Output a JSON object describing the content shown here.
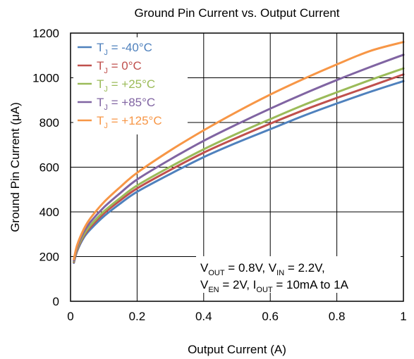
{
  "chart_data": {
    "type": "line",
    "title": "Ground Pin Current vs. Output Current",
    "xlabel": "Output Current (A)",
    "ylabel": "Ground Pin Current (μA)",
    "xlim": [
      0,
      1
    ],
    "ylim": [
      0,
      1200
    ],
    "xticks": [
      0,
      0.2,
      0.4,
      0.6,
      0.8,
      1
    ],
    "xtick_labels": [
      "0",
      "0.2",
      "0.4",
      "0.6",
      "0.8",
      "1"
    ],
    "yticks": [
      0,
      200,
      400,
      600,
      800,
      1000,
      1200
    ],
    "ytick_labels": [
      "0",
      "200",
      "400",
      "600",
      "800",
      "1000",
      "1200"
    ],
    "grid": true,
    "legend_position": "top-left",
    "x": [
      0.01,
      0.02,
      0.04,
      0.06,
      0.1,
      0.15,
      0.2,
      0.3,
      0.4,
      0.5,
      0.6,
      0.7,
      0.8,
      0.9,
      1.0
    ],
    "series": [
      {
        "name_main": "T",
        "name_sub": "J",
        "name_rest": " = -40°C",
        "color": "#4f81bd",
        "values": [
          172,
          225,
          285,
          322,
          380,
          438,
          490,
          570,
          645,
          710,
          770,
          830,
          885,
          937,
          985
        ]
      },
      {
        "name_main": "T",
        "name_sub": "J",
        "name_rest": " = 0°C",
        "color": "#c0504d",
        "values": [
          175,
          230,
          292,
          332,
          393,
          452,
          505,
          588,
          665,
          732,
          795,
          855,
          910,
          962,
          1015
        ]
      },
      {
        "name_main": "T",
        "name_sub": "J",
        "name_rest": " = +25°C",
        "color": "#9bbb59",
        "values": [
          178,
          235,
          298,
          340,
          402,
          463,
          518,
          602,
          680,
          750,
          815,
          878,
          935,
          990,
          1042
        ]
      },
      {
        "name_main": "T",
        "name_sub": "J",
        "name_rest": " = +85°C",
        "color": "#8064a2",
        "values": [
          182,
          243,
          310,
          355,
          420,
          485,
          545,
          635,
          718,
          792,
          862,
          928,
          990,
          1048,
          1103
        ]
      },
      {
        "name_main": "T",
        "name_sub": "J",
        "name_rest": " = +125°C",
        "color": "#f79646",
        "values": [
          188,
          252,
          323,
          372,
          443,
          512,
          575,
          675,
          765,
          848,
          925,
          995,
          1060,
          1120,
          1160
        ]
      }
    ],
    "annotation": [
      [
        {
          "t": "V"
        },
        {
          "t": "OUT",
          "sub": true
        },
        {
          "t": " = 0.8V, V"
        },
        {
          "t": "IN",
          "sub": true
        },
        {
          "t": " = 2.2V,"
        }
      ],
      [
        {
          "t": "V"
        },
        {
          "t": "EN",
          "sub": true
        },
        {
          "t": " = 2V, I"
        },
        {
          "t": "OUT",
          "sub": true
        },
        {
          "t": " = 10mA to 1A"
        }
      ]
    ]
  }
}
